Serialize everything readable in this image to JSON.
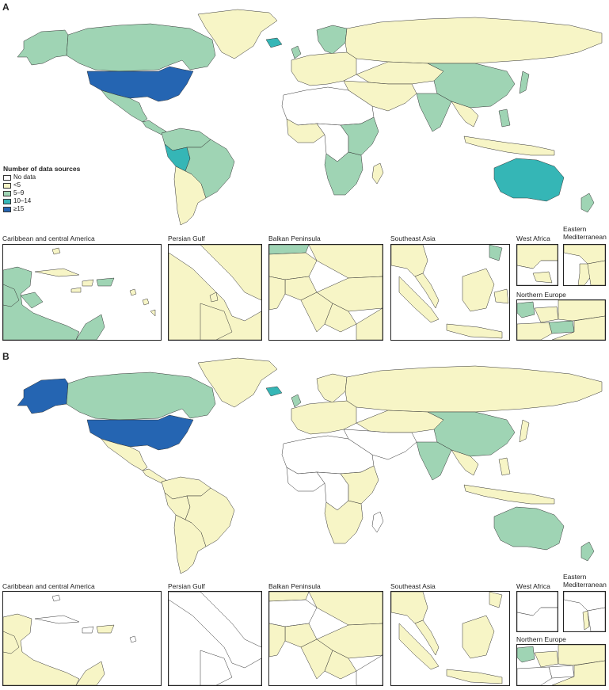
{
  "colors": {
    "no_data": "#ffffff",
    "lt5": "#f7f5c6",
    "5to9": "#9fd4b4",
    "10to14": "#35b6b6",
    "ge15": "#2565b2"
  },
  "legend": {
    "title": "Number of data sources",
    "items": [
      {
        "label": "No data",
        "key": "no_data"
      },
      {
        "label": "<5",
        "key": "lt5"
      },
      {
        "label": "5–9",
        "key": "5to9"
      },
      {
        "label": "10–14",
        "key": "10to14"
      },
      {
        "label": "≥15",
        "key": "ge15"
      }
    ]
  },
  "panels": [
    {
      "letter": "A",
      "insets": {
        "caribbean": "Caribbean and central America",
        "persian_gulf": "Persian Gulf",
        "balkan": "Balkan Peninsula",
        "southeast_asia": "Southeast Asia",
        "west_africa": "West Africa",
        "eastern_med": "Eastern\nMediterranean",
        "northern_europe": "Northern Europe"
      }
    },
    {
      "letter": "B",
      "insets": {
        "caribbean": "Caribbean and central America",
        "persian_gulf": "Persian Gulf",
        "balkan": "Balkan Peninsula",
        "southeast_asia": "Southeast Asia",
        "west_africa": "West Africa",
        "eastern_med": "Eastern\nMediterranean",
        "northern_europe": "Northern Europe"
      }
    }
  ],
  "map_fill": {
    "A": {
      "alaska": "5to9",
      "canada": "5to9",
      "usa": "ge15",
      "greenland": "lt5",
      "iceland": "10to14",
      "mexico": "5to9",
      "central_america": "5to9",
      "south_america_north": "5to9",
      "brazil": "5to9",
      "peru": "10to14",
      "south_cone": "lt5",
      "europe": "lt5",
      "scandinavia": "5to9",
      "uk": "5to9",
      "russia": "lt5",
      "middle_east": "lt5",
      "central_asia": "lt5",
      "china": "5to9",
      "india": "5to9",
      "north_africa": "no_data",
      "west_africa": "lt5",
      "central_africa": "no_data",
      "east_africa": "5to9",
      "southern_africa": "5to9",
      "madagascar": "lt5",
      "southeast_asia": "lt5",
      "indonesia": "lt5",
      "japan": "5to9",
      "australia": "10to14",
      "new_zealand": "5to9",
      "philippines": "5to9"
    },
    "B": {
      "alaska": "ge15",
      "canada": "5to9",
      "usa": "ge15",
      "greenland": "lt5",
      "iceland": "10to14",
      "mexico": "lt5",
      "central_america": "lt5",
      "south_america_north": "lt5",
      "brazil": "lt5",
      "peru": "lt5",
      "south_cone": "lt5",
      "europe": "lt5",
      "scandinavia": "lt5",
      "uk": "5to9",
      "russia": "lt5",
      "middle_east": "no_data",
      "central_asia": "lt5",
      "china": "5to9",
      "india": "5to9",
      "north_africa": "no_data",
      "west_africa": "no_data",
      "central_africa": "no_data",
      "east_africa": "lt5",
      "southern_africa": "lt5",
      "madagascar": "no_data",
      "southeast_asia": "lt5",
      "indonesia": "lt5",
      "japan": "lt5",
      "australia": "5to9",
      "new_zealand": "5to9",
      "philippines": "lt5"
    }
  }
}
